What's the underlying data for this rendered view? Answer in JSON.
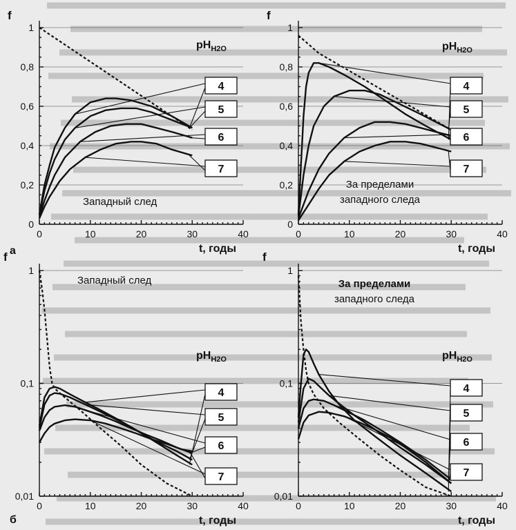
{
  "chart_data": [
    {
      "id": "a",
      "type": "line",
      "panel_label": "а",
      "caption": "Западный след",
      "ylabel": "f",
      "xlabel": "t, годы",
      "legend_title": "pH",
      "legend_title_sub": "H2O",
      "scale": "linear",
      "xlim": [
        0,
        40
      ],
      "ylim": [
        0,
        1
      ],
      "x_ticks": [
        "0",
        "10",
        "20",
        "30",
        "40"
      ],
      "y_ticks": [
        "0",
        "0,2",
        "0,4",
        "0,6",
        "0,8",
        "1"
      ],
      "grid": true,
      "series": [
        {
          "name": "4",
          "x": [
            0,
            1,
            2,
            3,
            5,
            7,
            10,
            13,
            15,
            18,
            22,
            26,
            30
          ],
          "y": [
            0.05,
            0.2,
            0.3,
            0.39,
            0.49,
            0.56,
            0.62,
            0.64,
            0.64,
            0.63,
            0.6,
            0.55,
            0.49
          ]
        },
        {
          "name": "5",
          "x": [
            0,
            1,
            2,
            3,
            5,
            7,
            10,
            13,
            16,
            19,
            22,
            26,
            30
          ],
          "y": [
            0.05,
            0.17,
            0.26,
            0.33,
            0.43,
            0.49,
            0.55,
            0.58,
            0.59,
            0.59,
            0.57,
            0.53,
            0.49
          ]
        },
        {
          "name": "6",
          "x": [
            0,
            1,
            2,
            3,
            5,
            8,
            11,
            14,
            17,
            20,
            23,
            26,
            30
          ],
          "y": [
            0.04,
            0.12,
            0.19,
            0.25,
            0.34,
            0.42,
            0.47,
            0.5,
            0.51,
            0.51,
            0.49,
            0.47,
            0.44
          ]
        },
        {
          "name": "7",
          "x": [
            0,
            1,
            2,
            4,
            6,
            9,
            12,
            15,
            18,
            20,
            23,
            26,
            30
          ],
          "y": [
            0.03,
            0.09,
            0.14,
            0.22,
            0.28,
            0.34,
            0.38,
            0.41,
            0.42,
            0.42,
            0.41,
            0.38,
            0.35
          ]
        },
        {
          "name": "",
          "style": "dashed",
          "x": [
            0,
            30
          ],
          "y": [
            1.0,
            0.48
          ]
        }
      ]
    },
    {
      "id": "b",
      "type": "line",
      "panel_label": "",
      "caption": "За пределами западного следа",
      "caption_lines": [
        "За пределами",
        "западного следа"
      ],
      "ylabel": "f",
      "xlabel": "t, годы",
      "legend_title": "pH",
      "legend_title_sub": "H2O",
      "scale": "linear",
      "xlim": [
        0,
        40
      ],
      "ylim": [
        0,
        1
      ],
      "x_ticks": [
        "0",
        "10",
        "20",
        "30",
        "40"
      ],
      "y_ticks": [
        "0",
        "0,2",
        "0,4",
        "0,6",
        "0,8",
        "1"
      ],
      "grid": true,
      "series": [
        {
          "name": "4",
          "x": [
            0,
            0.5,
            1,
            1.5,
            2,
            3,
            4,
            6,
            9,
            13,
            17,
            21,
            25,
            30
          ],
          "y": [
            0.05,
            0.3,
            0.55,
            0.7,
            0.77,
            0.82,
            0.82,
            0.8,
            0.76,
            0.7,
            0.63,
            0.56,
            0.5,
            0.43
          ]
        },
        {
          "name": "5",
          "x": [
            0,
            1,
            2,
            3,
            5,
            7,
            10,
            13,
            16,
            20,
            24,
            27,
            30
          ],
          "y": [
            0.04,
            0.25,
            0.4,
            0.5,
            0.6,
            0.65,
            0.68,
            0.68,
            0.66,
            0.61,
            0.56,
            0.52,
            0.48
          ]
        },
        {
          "name": "6",
          "x": [
            0,
            1,
            2,
            4,
            6,
            9,
            12,
            15,
            18,
            21,
            24,
            27,
            30
          ],
          "y": [
            0.03,
            0.1,
            0.17,
            0.28,
            0.36,
            0.44,
            0.49,
            0.52,
            0.52,
            0.51,
            0.49,
            0.47,
            0.45
          ]
        },
        {
          "name": "7",
          "x": [
            0,
            1,
            2,
            4,
            6,
            9,
            12,
            15,
            18,
            21,
            24,
            27,
            30
          ],
          "y": [
            0.02,
            0.06,
            0.1,
            0.18,
            0.25,
            0.32,
            0.37,
            0.4,
            0.42,
            0.42,
            0.41,
            0.39,
            0.37
          ]
        },
        {
          "name": "",
          "style": "dashed",
          "x": [
            0,
            4,
            30
          ],
          "y": [
            0.96,
            0.87,
            0.48
          ]
        }
      ]
    },
    {
      "id": "c",
      "type": "line",
      "panel_label": "б",
      "caption": "Западный след",
      "ylabel": "f",
      "xlabel": "t, годы",
      "legend_title": "pH",
      "legend_title_sub": "H2O",
      "scale": "log",
      "xlim": [
        0,
        40
      ],
      "ylim": [
        0.01,
        1
      ],
      "x_ticks": [
        "0",
        "10",
        "20",
        "30",
        "40"
      ],
      "y_ticks": [
        "0,01",
        "0,1",
        "1"
      ],
      "grid": true,
      "series": [
        {
          "name": "4",
          "x": [
            0,
            1,
            2,
            3,
            4,
            6,
            9,
            12,
            15,
            18,
            21,
            24,
            27,
            30
          ],
          "y": [
            0.042,
            0.075,
            0.09,
            0.093,
            0.09,
            0.08,
            0.068,
            0.058,
            0.049,
            0.041,
            0.034,
            0.028,
            0.023,
            0.019
          ]
        },
        {
          "name": "5",
          "x": [
            0,
            1,
            2,
            3,
            4,
            6,
            9,
            12,
            15,
            18,
            21,
            24,
            27,
            30
          ],
          "y": [
            0.04,
            0.065,
            0.078,
            0.082,
            0.081,
            0.075,
            0.065,
            0.056,
            0.048,
            0.041,
            0.034,
            0.029,
            0.025,
            0.021
          ]
        },
        {
          "name": "6",
          "x": [
            0,
            1,
            2,
            3,
            5,
            7,
            9,
            12,
            15,
            18,
            21,
            24,
            27,
            30
          ],
          "y": [
            0.038,
            0.05,
            0.058,
            0.062,
            0.064,
            0.062,
            0.058,
            0.052,
            0.046,
            0.04,
            0.035,
            0.031,
            0.027,
            0.024
          ]
        },
        {
          "name": "7",
          "x": [
            0,
            1,
            2,
            3,
            5,
            7,
            10,
            13,
            16,
            19,
            22,
            25,
            28,
            30
          ],
          "y": [
            0.03,
            0.036,
            0.041,
            0.044,
            0.047,
            0.048,
            0.047,
            0.044,
            0.04,
            0.036,
            0.032,
            0.029,
            0.026,
            0.025
          ]
        },
        {
          "name": "",
          "style": "dashed",
          "x": [
            0,
            0.5,
            1,
            1.5,
            2,
            2.5,
            3,
            5,
            8,
            12,
            16,
            20,
            25,
            30
          ],
          "y": [
            1.0,
            0.7,
            0.45,
            0.25,
            0.14,
            0.1,
            0.09,
            0.075,
            0.058,
            0.04,
            0.028,
            0.019,
            0.013,
            0.0095
          ]
        }
      ]
    },
    {
      "id": "d",
      "type": "line",
      "panel_label": "",
      "caption": "За пределами западного следа",
      "caption_lines": [
        "За пределами",
        "западного следа"
      ],
      "ylabel": "f",
      "xlabel": "t, годы",
      "legend_title": "pH",
      "legend_title_sub": "H2O",
      "scale": "log",
      "xlim": [
        0,
        40
      ],
      "ylim": [
        0.01,
        1
      ],
      "x_ticks": [
        "0",
        "10",
        "20",
        "30",
        "40"
      ],
      "y_ticks": [
        "0,01",
        "0,1",
        "1"
      ],
      "grid": true,
      "series": [
        {
          "name": "4",
          "x": [
            0,
            0.5,
            1,
            1.5,
            2,
            3,
            4,
            6,
            8,
            11,
            15,
            20,
            25,
            30
          ],
          "y": [
            0.05,
            0.1,
            0.18,
            0.2,
            0.19,
            0.15,
            0.12,
            0.085,
            0.065,
            0.047,
            0.034,
            0.023,
            0.016,
            0.011
          ]
        },
        {
          "name": "5",
          "x": [
            0,
            1,
            2,
            3,
            4,
            6,
            8,
            11,
            15,
            20,
            25,
            30
          ],
          "y": [
            0.045,
            0.09,
            0.11,
            0.105,
            0.095,
            0.078,
            0.066,
            0.052,
            0.039,
            0.027,
            0.019,
            0.013
          ]
        },
        {
          "name": "6",
          "x": [
            0,
            1,
            2,
            3,
            5,
            7,
            10,
            13,
            16,
            20,
            25,
            30
          ],
          "y": [
            0.04,
            0.06,
            0.07,
            0.072,
            0.07,
            0.064,
            0.055,
            0.047,
            0.039,
            0.03,
            0.021,
            0.014
          ]
        },
        {
          "name": "7",
          "x": [
            0,
            1,
            2,
            4,
            6,
            9,
            12,
            15,
            18,
            21,
            25,
            30
          ],
          "y": [
            0.032,
            0.045,
            0.052,
            0.056,
            0.055,
            0.051,
            0.045,
            0.039,
            0.033,
            0.027,
            0.02,
            0.013
          ]
        },
        {
          "name": "",
          "style": "dashed",
          "x": [
            0,
            0.5,
            1,
            1.5,
            2,
            3,
            5,
            8,
            12,
            16,
            20,
            25,
            30
          ],
          "y": [
            0.9,
            0.35,
            0.2,
            0.13,
            0.1,
            0.08,
            0.06,
            0.045,
            0.032,
            0.023,
            0.017,
            0.012,
            0.0095
          ]
        }
      ]
    }
  ]
}
